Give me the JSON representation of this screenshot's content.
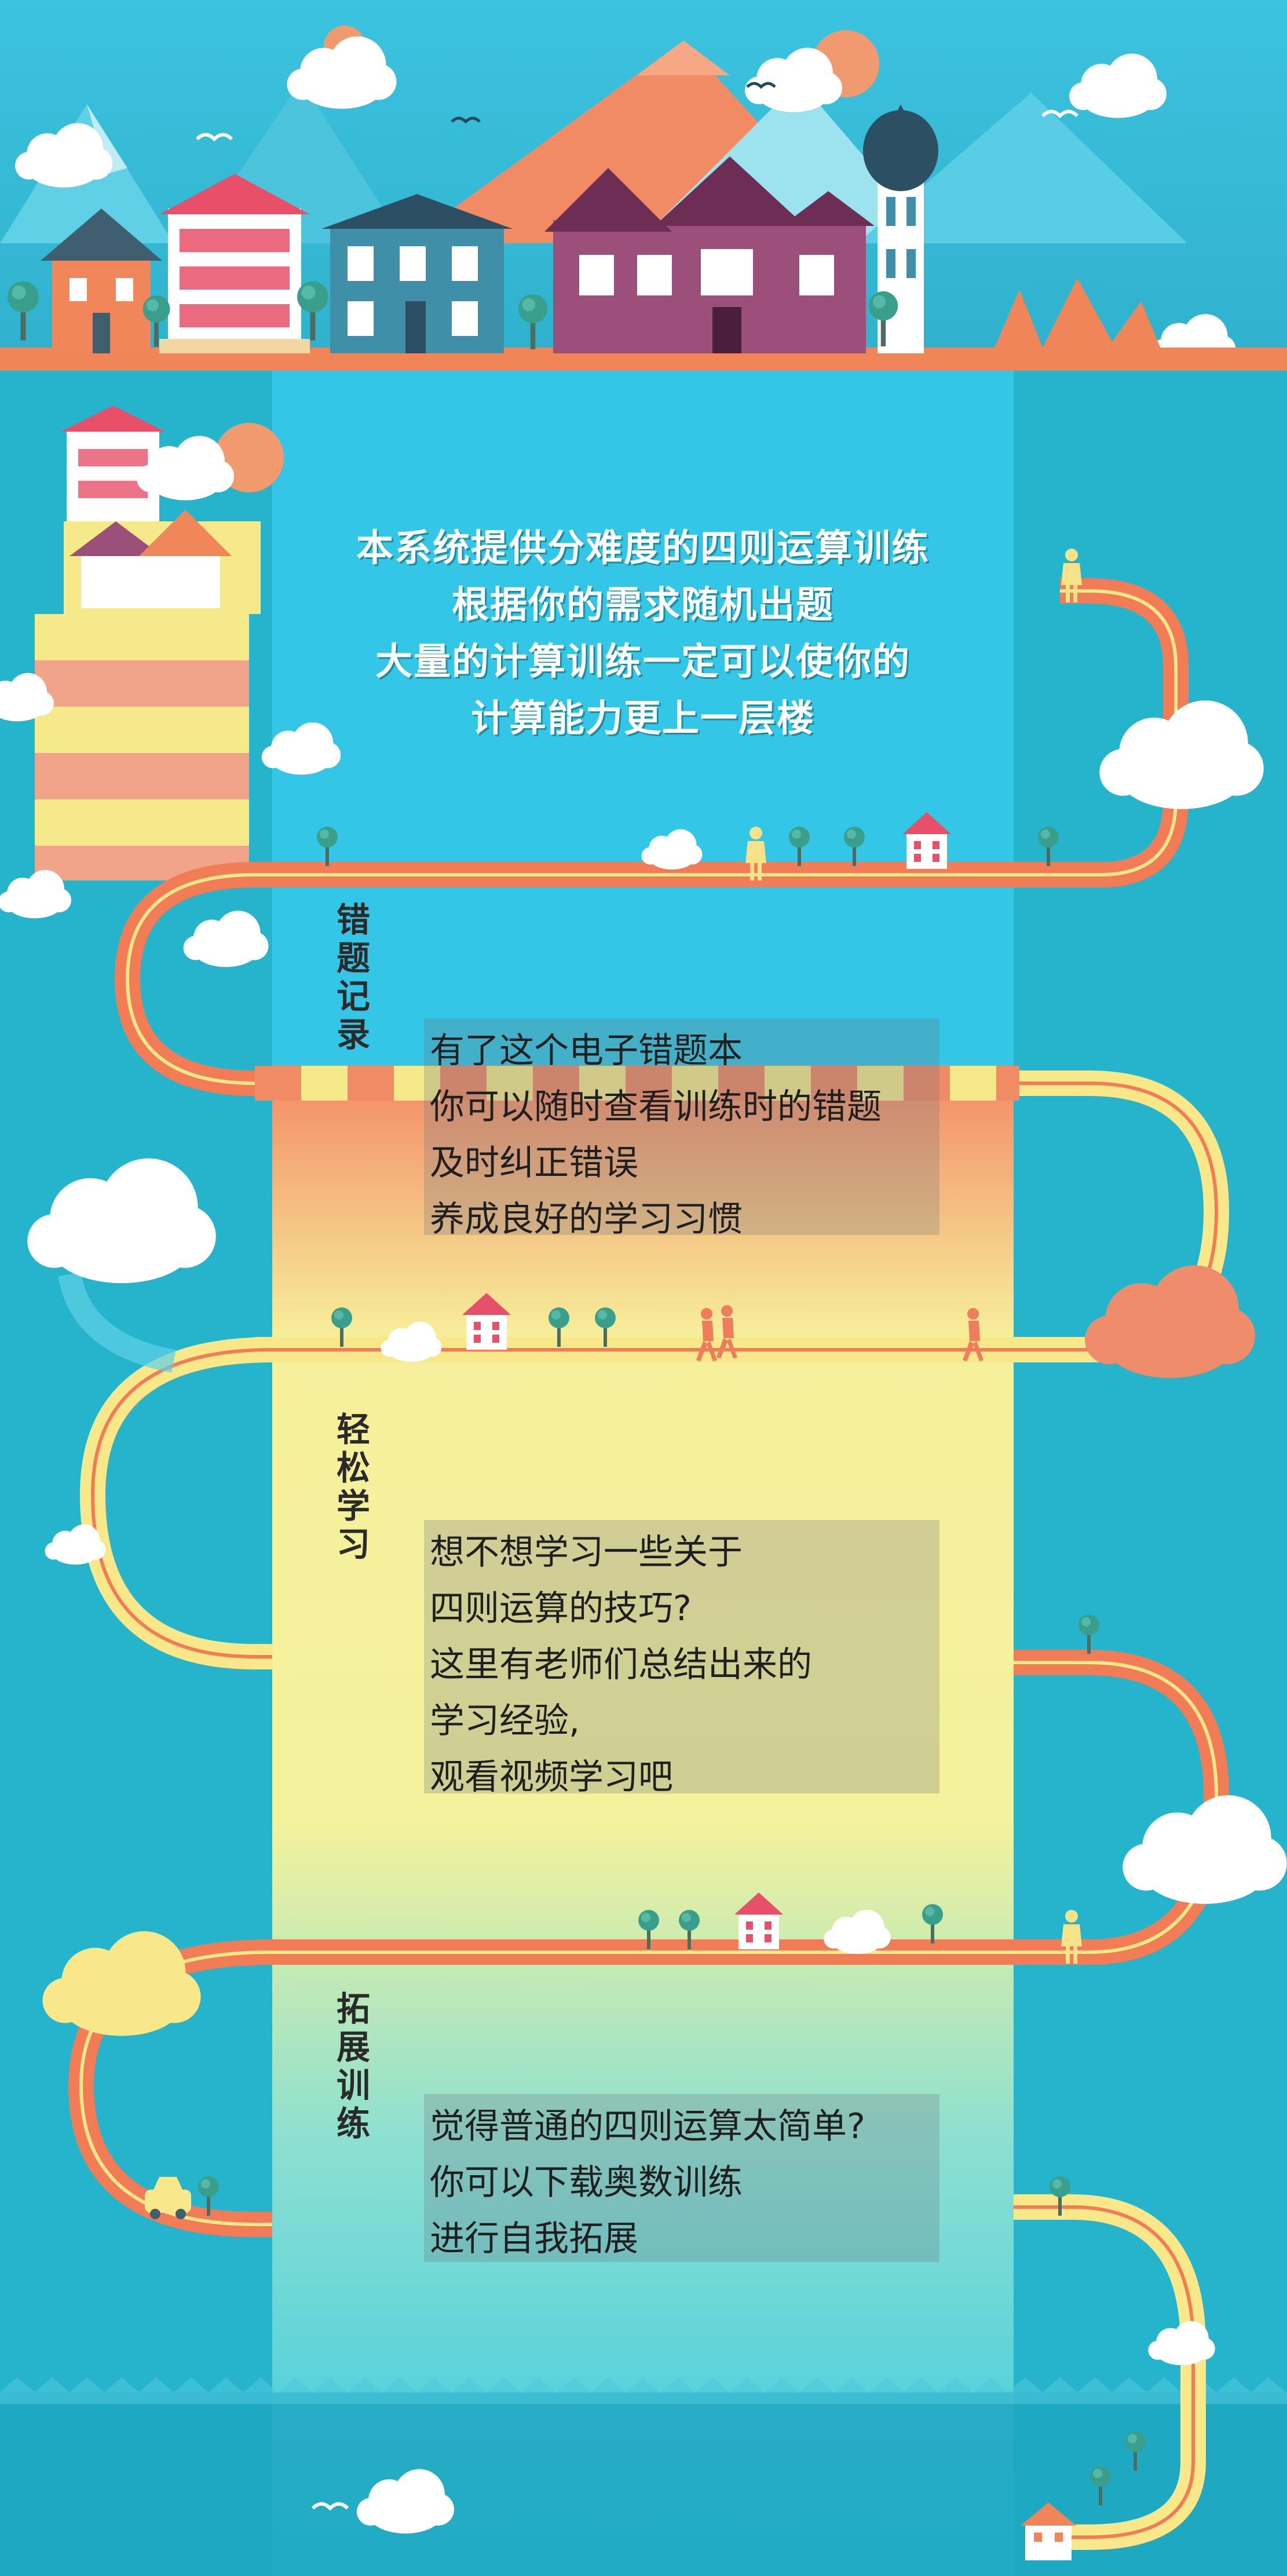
{
  "intro": {
    "lines": [
      "本系统提供分难度的四则运算训练",
      "根据你的需求随机出题",
      "大量的计算训练一定可以使你的",
      "计算能力更上一层楼"
    ]
  },
  "sections": [
    {
      "title_chars": [
        "错",
        "题",
        "记",
        "录"
      ],
      "lines": [
        "有了这个电子错题本",
        "你可以随时查看训练时的错题",
        "及时纠正错误",
        "养成良好的学习习惯"
      ]
    },
    {
      "title_chars": [
        "轻",
        "松",
        "学",
        "习"
      ],
      "lines": [
        "想不想学习一些关于",
        "四则运算的技巧?",
        "这里有老师们总结出来的",
        "学习经验,",
        "观看视频学习吧"
      ]
    },
    {
      "title_chars": [
        "拓",
        "展",
        "训",
        "练"
      ],
      "lines": [
        "觉得普通的四则运算太简单?",
        "你可以下载奥数训练",
        "进行自我拓展"
      ]
    }
  ],
  "colors": {
    "background": "#25b4cb",
    "panel_top": "#33c6e6",
    "panel_orange": "#f49a6a",
    "panel_yellow": "#f6ef9b",
    "road_orange": "#f27c55",
    "road_yellow": "#f8e88a",
    "cloud": "#ffffff",
    "salmon": "#ef8c6c"
  },
  "icons": {
    "houses": "house-icon",
    "trees": "tree-icon",
    "clouds": "cloud-icon",
    "people": "person-icon",
    "birds": "bird-icon",
    "car": "car-icon"
  }
}
